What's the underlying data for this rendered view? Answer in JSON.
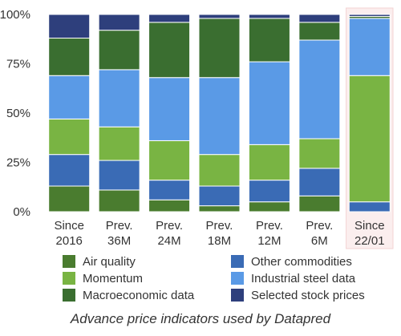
{
  "chart_data": {
    "type": "bar",
    "stacked": true,
    "caption": "Advance price indicators used by Datapred",
    "categories": [
      [
        "Since",
        "2016"
      ],
      [
        "Prev.",
        "36M"
      ],
      [
        "Prev.",
        "24M"
      ],
      [
        "Prev.",
        "18M"
      ],
      [
        "Prev.",
        "12M"
      ],
      [
        "Prev.",
        "6M"
      ],
      [
        "Since",
        "22/01"
      ]
    ],
    "highlight_category_index": 6,
    "y_ticks": [
      "0%",
      "25%",
      "50%",
      "75%",
      "100%"
    ],
    "ylim": [
      0,
      100
    ],
    "grid": false,
    "legend_position": "bottom",
    "series": [
      {
        "name": "Air quality",
        "color": "#4a7c2f",
        "values": [
          13,
          11,
          6,
          3,
          5,
          8,
          0
        ]
      },
      {
        "name": "Other commodities",
        "color": "#3a6bb5",
        "values": [
          16,
          15,
          10,
          10,
          11,
          14,
          5
        ]
      },
      {
        "name": "Momentum",
        "color": "#79b443",
        "values": [
          18,
          17,
          20,
          16,
          18,
          15,
          64
        ]
      },
      {
        "name": "Industrial steel data",
        "color": "#5a9ae6",
        "values": [
          22,
          29,
          32,
          39,
          42,
          50,
          29
        ]
      },
      {
        "name": "Macroeconomic data",
        "color": "#3a6e30",
        "values": [
          19,
          20,
          28,
          30,
          22,
          9,
          1
        ]
      },
      {
        "name": "Selected stock prices",
        "color": "#2e3f7c",
        "values": [
          12,
          8,
          4,
          2,
          2,
          4,
          1
        ]
      }
    ]
  }
}
